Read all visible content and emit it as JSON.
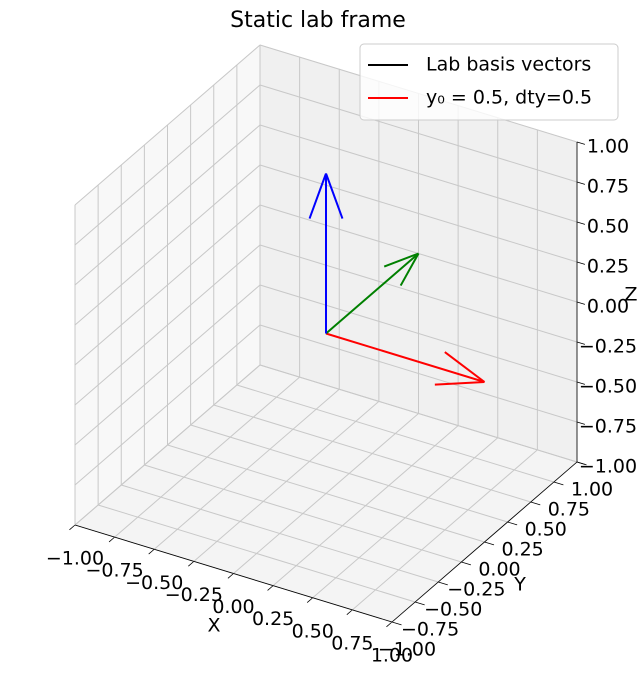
{
  "chart_data": {
    "type": "quiver3d",
    "title": "Static lab frame",
    "xlabel": "X",
    "ylabel": "Y",
    "zlabel": "Z",
    "xlim": [
      -1,
      1
    ],
    "ylim": [
      -1,
      1
    ],
    "zlim": [
      -1,
      1
    ],
    "xticks": [
      {
        "value": -1,
        "label": "−1.00"
      },
      {
        "value": -0.75,
        "label": "−0.75"
      },
      {
        "value": -0.5,
        "label": "−0.50"
      },
      {
        "value": -0.25,
        "label": "−0.25"
      },
      {
        "value": 0,
        "label": "0.00"
      },
      {
        "value": 0.25,
        "label": "0.25"
      },
      {
        "value": 0.5,
        "label": "0.50"
      },
      {
        "value": 0.75,
        "label": "0.75"
      },
      {
        "value": 1,
        "label": "1.00"
      }
    ],
    "yticks": [
      {
        "value": -1,
        "label": "−1.00"
      },
      {
        "value": -0.75,
        "label": "−0.75"
      },
      {
        "value": -0.5,
        "label": "−0.50"
      },
      {
        "value": -0.25,
        "label": "−0.25"
      },
      {
        "value": 0,
        "label": "0.00"
      },
      {
        "value": 0.25,
        "label": "0.25"
      },
      {
        "value": 0.5,
        "label": "0.50"
      },
      {
        "value": 0.75,
        "label": "0.75"
      },
      {
        "value": 1,
        "label": "1.00"
      }
    ],
    "zticks": [
      {
        "value": -1,
        "label": "−1.00"
      },
      {
        "value": -0.75,
        "label": "−0.75"
      },
      {
        "value": -0.5,
        "label": "−0.50"
      },
      {
        "value": -0.25,
        "label": "−0.25"
      },
      {
        "value": 0,
        "label": "0.00"
      },
      {
        "value": 0.25,
        "label": "0.25"
      },
      {
        "value": 0.5,
        "label": "0.50"
      },
      {
        "value": 0.75,
        "label": "0.75"
      },
      {
        "value": 1,
        "label": "1.00"
      }
    ],
    "vectors": [
      {
        "color": "#ff0000",
        "origin": [
          0,
          0,
          0
        ],
        "direction": [
          1,
          0,
          0
        ]
      },
      {
        "color": "#008000",
        "origin": [
          0,
          0,
          0
        ],
        "direction": [
          0,
          1,
          0
        ]
      },
      {
        "color": "#0000ff",
        "origin": [
          0,
          0,
          0
        ],
        "direction": [
          0,
          0,
          1
        ]
      }
    ],
    "legend": [
      {
        "label": "Lab basis vectors",
        "color": "#000000"
      },
      {
        "label": "y₀ = 0.5, dty=0.5",
        "color": "#ff0000"
      }
    ],
    "legend_loc": "upper right",
    "grid": true
  }
}
